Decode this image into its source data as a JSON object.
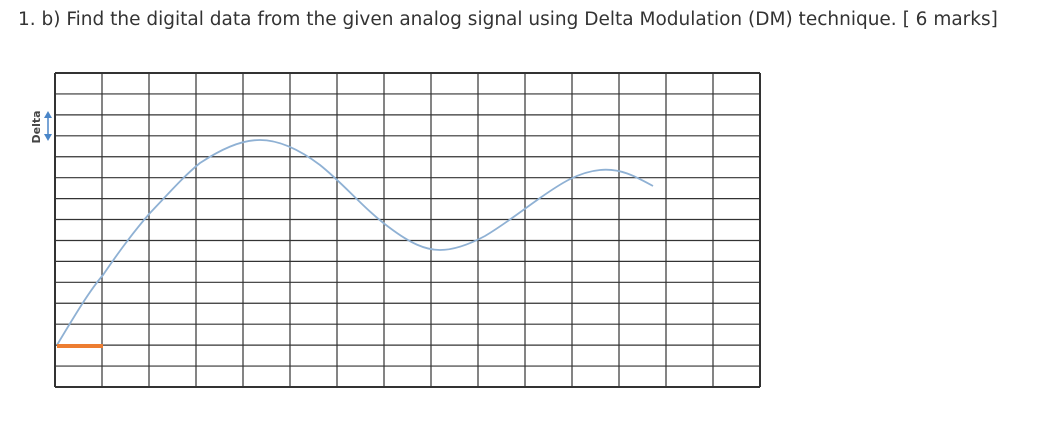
{
  "question": "1. b) Find the digital data from the given analog signal using Delta Modulation (DM) technique. [ 6 marks]",
  "diagram": {
    "step_label": "Delta"
  }
}
